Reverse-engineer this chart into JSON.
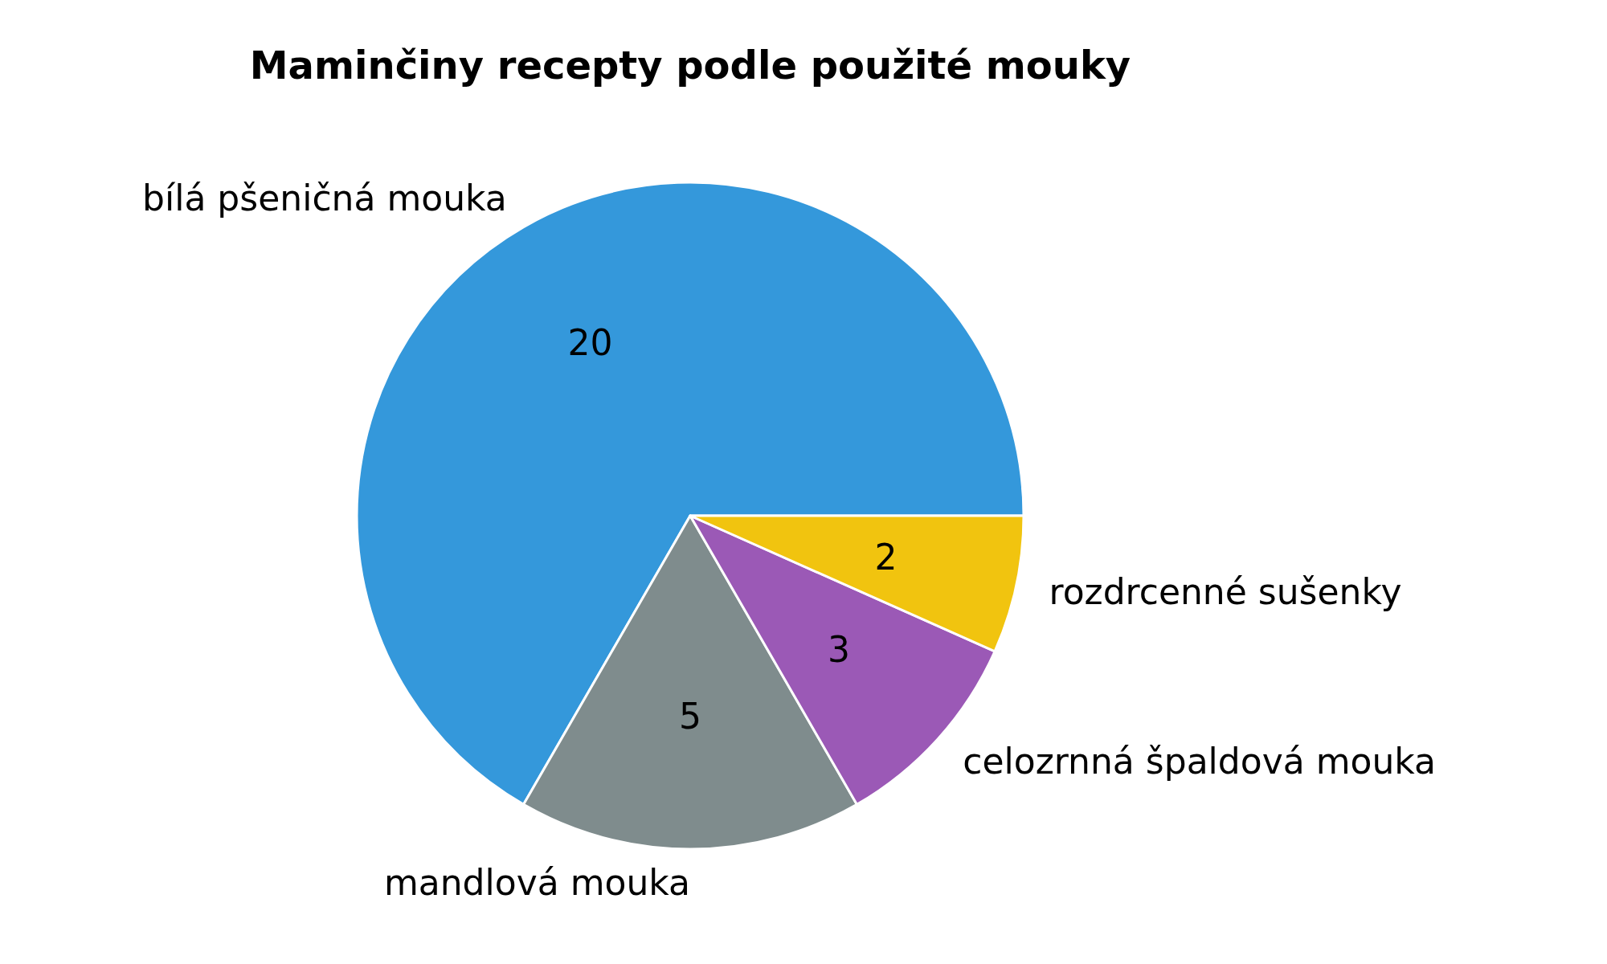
{
  "chart_data": {
    "type": "pie",
    "title": "Maminčiny recepty podle použité mouky",
    "categories": [
      "bílá pšeničná mouka",
      "mandlová mouka",
      "celozrnná špaldová mouka",
      "rozdrcenné sušenky"
    ],
    "values": [
      20,
      5,
      3,
      2
    ],
    "colors": [
      "#3498db",
      "#7f8c8d",
      "#9b59b6",
      "#f1c40f"
    ],
    "data_labels": true
  }
}
